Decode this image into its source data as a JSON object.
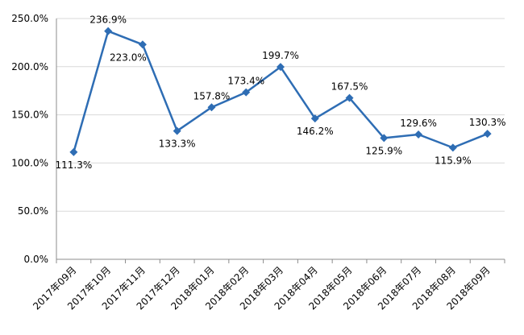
{
  "chart_data": {
    "type": "line",
    "title": "",
    "xlabel": "",
    "ylabel": "",
    "categories": [
      "2017年09月",
      "2017年10月",
      "2017年11月",
      "2017年12月",
      "2018年01月",
      "2018年02月",
      "2018年03月",
      "2018年04月",
      "2018年05月",
      "2018年06月",
      "2018年07月",
      "2018年08月",
      "2018年09月"
    ],
    "series": [
      {
        "values": [
          111.3,
          236.9,
          223.0,
          133.3,
          157.8,
          173.4,
          199.7,
          146.2,
          167.5,
          125.9,
          129.6,
          115.9,
          130.3
        ]
      }
    ],
    "data_labels": [
      "111.3%",
      "236.9%",
      "223.0%",
      "133.3%",
      "157.8%",
      "173.4%",
      "199.7%",
      "146.2%",
      "167.5%",
      "125.9%",
      "129.6%",
      "115.9%",
      "130.3%"
    ],
    "ylim": [
      0,
      250
    ],
    "yticks": [
      0,
      50,
      100,
      150,
      200,
      250
    ],
    "ytick_labels": [
      "0.0%",
      "50.0%",
      "100.0%",
      "150.0%",
      "200.0%",
      "250.0%"
    ],
    "grid": true,
    "legend": "none",
    "colors": {
      "line": "#2e6db4",
      "marker": "#2e6db4",
      "grid": "#d9d9d9"
    }
  }
}
